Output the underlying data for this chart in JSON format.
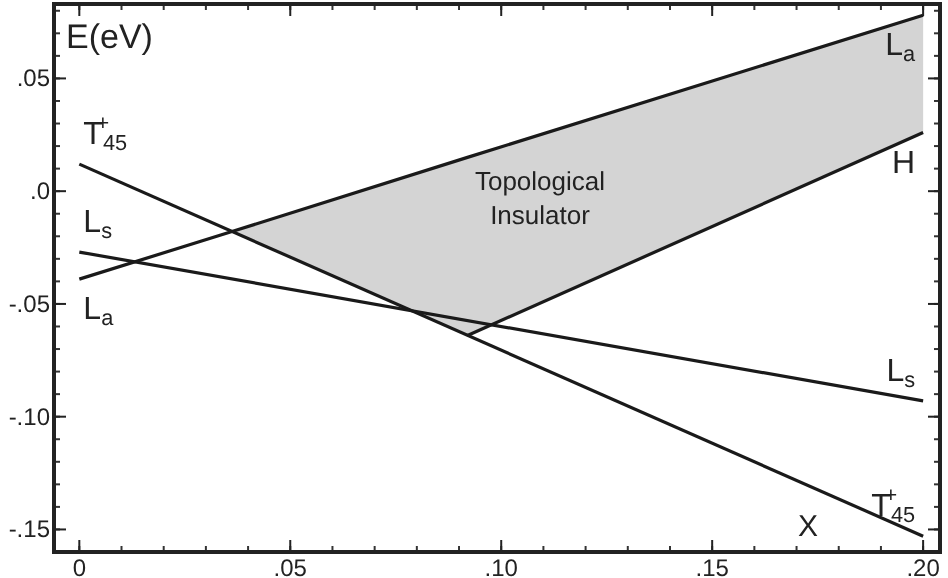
{
  "chart_data": {
    "type": "line",
    "ylabel": "E(eV)",
    "xlim": [
      -0.006,
      0.204
    ],
    "ylim": [
      -0.16,
      0.083
    ],
    "xticks": [
      {
        "value": 0,
        "label": "0"
      },
      {
        "value": 0.05,
        "label": ".05"
      },
      {
        "value": 0.1,
        "label": ".10"
      },
      {
        "value": 0.15,
        "label": ".15"
      },
      {
        "value": 0.2,
        "label": ".20"
      }
    ],
    "yticks": [
      {
        "value": 0.05,
        "label": ".05"
      },
      {
        "value": 0,
        "label": ".0"
      },
      {
        "value": -0.05,
        "label": "-.05"
      },
      {
        "value": -0.1,
        "label": "-.10"
      },
      {
        "value": -0.15,
        "label": "-.15"
      }
    ],
    "grid": false,
    "marker": "none",
    "line_style": "solid",
    "series": [
      {
        "name": "T$_{45}$$^{+}$",
        "color": "#1a1a1a",
        "x": [
          0,
          0.2
        ],
        "values": [
          0.012,
          -0.153
        ]
      },
      {
        "name": "L$_{s}$",
        "color": "#1a1a1a",
        "x": [
          0,
          0.2
        ],
        "values": [
          -0.027,
          -0.093
        ]
      },
      {
        "name": "L$_{a}$",
        "color": "#1a1a1a",
        "x": [
          0,
          0.036,
          0.092,
          0.2
        ],
        "values": [
          -0.039,
          -0.018,
          0.015,
          0.078
        ],
        "upper": [
          -0.039,
          -0.018,
          0.015,
          0.078
        ],
        "lower": [
          -0.039,
          -0.018,
          -0.064,
          0.026
        ]
      },
      {
        "name": "H",
        "color": "#1a1a1a",
        "x": [
          0.092,
          0.2
        ],
        "values": [
          -0.064,
          0.026
        ]
      }
    ],
    "annotations": [
      "Topological\nInsulator",
      "X"
    ]
  }
}
